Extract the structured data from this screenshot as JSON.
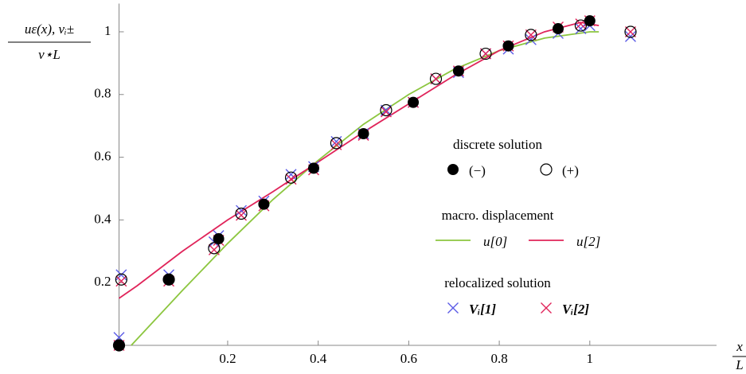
{
  "chart_data": {
    "type": "scatter",
    "y_label_numerator": "uε(x), vᵢ±",
    "y_label_denominator": "v⋆L",
    "x_label_numerator": "x",
    "x_label_denominator": "L",
    "xlim": [
      -0.04,
      1.28
    ],
    "ylim": [
      0,
      1.09
    ],
    "xticks": [
      0.2,
      0.4,
      0.6,
      0.8,
      1
    ],
    "yticks": [
      0.2,
      0.4,
      0.6,
      0.8,
      1
    ],
    "legend_titles": [
      "discrete solution",
      "macro. displacement",
      "relocalized solution"
    ],
    "series": [
      {
        "name": "u[0]",
        "style": "line",
        "color": "#8cc63f",
        "legend_group": 1,
        "x": [
          -0.013,
          0.1,
          0.2,
          0.3,
          0.4,
          0.5,
          0.6,
          0.7,
          0.8,
          0.9,
          1.0,
          1.02
        ],
        "values": [
          0,
          0.175,
          0.325,
          0.465,
          0.59,
          0.705,
          0.8,
          0.88,
          0.94,
          0.98,
          1.0,
          1.0
        ]
      },
      {
        "name": "u[2]",
        "style": "line",
        "color": "#e0245a",
        "legend_group": 1,
        "x": [
          -0.04,
          0,
          0.1,
          0.2,
          0.3,
          0.4,
          0.5,
          0.6,
          0.7,
          0.8,
          0.9,
          0.98,
          1.02
        ],
        "values": [
          0.15,
          0.19,
          0.3,
          0.4,
          0.49,
          0.585,
          0.68,
          0.77,
          0.86,
          0.94,
          1.0,
          1.03,
          1.02
        ]
      },
      {
        "name": "Vᵢ[1]",
        "style": "cross",
        "color": "#5b5be6",
        "legend_group": 2,
        "x": [
          -0.04,
          -0.035,
          0.07,
          0.17,
          0.18,
          0.23,
          0.28,
          0.34,
          0.39,
          0.44,
          0.5,
          0.55,
          0.61,
          0.66,
          0.71,
          0.77,
          0.82,
          0.87,
          0.93,
          0.98,
          1.0,
          1.09
        ],
        "values": [
          0.025,
          0.225,
          0.225,
          0.33,
          0.35,
          0.43,
          0.46,
          0.545,
          0.57,
          0.65,
          0.675,
          0.75,
          0.775,
          0.85,
          0.87,
          0.93,
          0.945,
          0.975,
          0.995,
          1.01,
          1.02,
          0.985
        ]
      },
      {
        "name": "Vᵢ[2]",
        "style": "cross",
        "color": "#e0245a",
        "legend_group": 2,
        "x": [
          -0.04,
          -0.035,
          0.07,
          0.17,
          0.18,
          0.23,
          0.28,
          0.34,
          0.39,
          0.44,
          0.5,
          0.55,
          0.61,
          0.66,
          0.71,
          0.77,
          0.82,
          0.87,
          0.93,
          0.98,
          1.0,
          1.09
        ],
        "values": [
          0,
          0.205,
          0.205,
          0.305,
          0.335,
          0.415,
          0.445,
          0.53,
          0.56,
          0.64,
          0.67,
          0.745,
          0.775,
          0.85,
          0.875,
          0.93,
          0.955,
          0.99,
          1.015,
          1.025,
          1.035,
          1.0
        ]
      },
      {
        "name": "(−)",
        "style": "disc",
        "color": "#000000",
        "legend_group": 0,
        "x": [
          -0.04,
          0.07,
          0.18,
          0.28,
          0.39,
          0.5,
          0.61,
          0.71,
          0.82,
          0.93,
          1.0
        ],
        "values": [
          0,
          0.21,
          0.34,
          0.45,
          0.565,
          0.675,
          0.775,
          0.875,
          0.955,
          1.01,
          1.035
        ]
      },
      {
        "name": "(+)",
        "style": "circle",
        "color": "#000000",
        "legend_group": 0,
        "x": [
          -0.04,
          -0.035,
          0.07,
          0.17,
          0.23,
          0.34,
          0.44,
          0.55,
          0.66,
          0.77,
          0.87,
          0.98,
          1.09
        ],
        "values": [
          0,
          0.21,
          0.21,
          0.31,
          0.42,
          0.535,
          0.645,
          0.75,
          0.85,
          0.93,
          0.99,
          1.02,
          1.0
        ]
      }
    ]
  }
}
